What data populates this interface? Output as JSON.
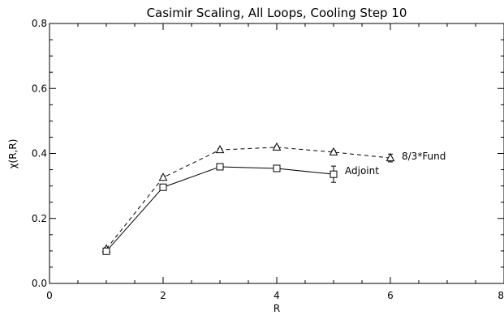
{
  "chart_data": {
    "type": "line",
    "title": "Casimir Scaling, All Loops, Cooling Step 10",
    "xlabel": "R",
    "ylabel": "χ(R,R)",
    "xlim": [
      0,
      8
    ],
    "ylim": [
      0.0,
      0.8
    ],
    "xticks": [
      0,
      2,
      4,
      6,
      8
    ],
    "xtick_labels": [
      "0",
      "2",
      "4",
      "6",
      "8"
    ],
    "yticks": [
      0.0,
      0.2,
      0.4,
      0.6,
      0.8
    ],
    "ytick_labels": [
      "0.0",
      "0.2",
      "0.4",
      "0.6",
      "0.8"
    ],
    "grid": false,
    "series": [
      {
        "name": "8/3*Fund",
        "line_style": "dashed",
        "marker": "triangle",
        "x": [
          1,
          2,
          3,
          4,
          5,
          6
        ],
        "y": [
          0.106,
          0.326,
          0.411,
          0.419,
          0.404,
          0.386
        ],
        "yerr": [
          0.004,
          0.005,
          0.004,
          0.004,
          0.005,
          0.012
        ]
      },
      {
        "name": "Adjoint",
        "line_style": "solid",
        "marker": "square",
        "x": [
          1,
          2,
          3,
          4,
          5
        ],
        "y": [
          0.099,
          0.296,
          0.359,
          0.354,
          0.336
        ],
        "yerr": [
          0.004,
          0.005,
          0.004,
          0.005,
          0.025
        ]
      }
    ]
  }
}
